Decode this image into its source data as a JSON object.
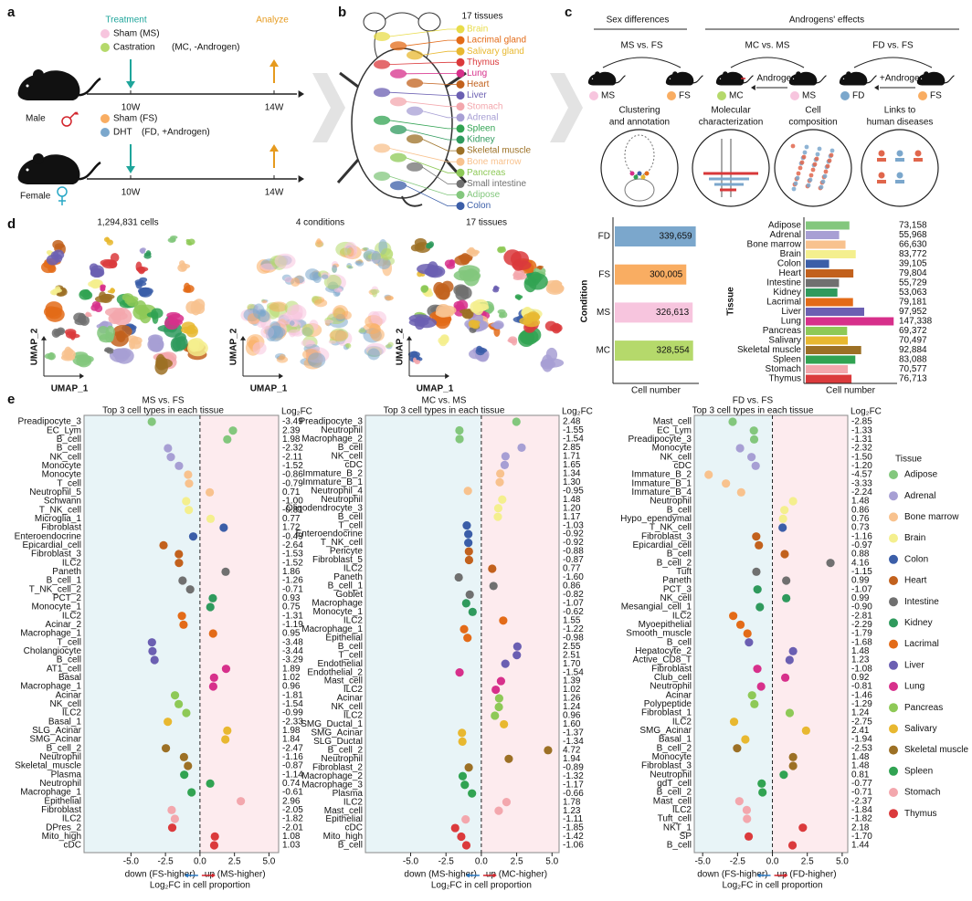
{
  "panel_labels": [
    "a",
    "b",
    "c",
    "d",
    "e"
  ],
  "panel_a": {
    "treatment": "Treatment",
    "analyze": "Analyze",
    "male": {
      "label": "Male",
      "groups": [
        {
          "name": "Sham (MS)",
          "color": "#f7c5de"
        },
        {
          "name": "Castration",
          "color": "#b5d96b"
        }
      ],
      "note": "(MC, -Androgen)",
      "times": [
        "10W",
        "14W"
      ]
    },
    "female": {
      "label": "Female",
      "groups": [
        {
          "name": "Sham (FS)",
          "color": "#f9ad62"
        },
        {
          "name": "DHT",
          "color": "#7ba7cc"
        }
      ],
      "note": "(FD, +Androgen)",
      "times": [
        "10W",
        "14W"
      ]
    }
  },
  "panel_b": {
    "title": "17 tissues",
    "tissues": [
      {
        "name": "Brain",
        "color": "#e8dc4a"
      },
      {
        "name": "Lacrimal gland",
        "color": "#e36b18"
      },
      {
        "name": "Salivary gland",
        "color": "#e8b830"
      },
      {
        "name": "Thymus",
        "color": "#db3a3c"
      },
      {
        "name": "Lung",
        "color": "#d7308b"
      },
      {
        "name": "Heart",
        "color": "#c2611d"
      },
      {
        "name": "Liver",
        "color": "#6b5fb2"
      },
      {
        "name": "Stomach",
        "color": "#f3a7ad"
      },
      {
        "name": "Adrenal",
        "color": "#a79fd4"
      },
      {
        "name": "Spleen",
        "color": "#31a352"
      },
      {
        "name": "Kidney",
        "color": "#2f9a5d"
      },
      {
        "name": "Skeletal muscle",
        "color": "#9c7025"
      },
      {
        "name": "Bone marrow",
        "color": "#f8c28e"
      },
      {
        "name": "Pancreas",
        "color": "#8ec957"
      },
      {
        "name": "Small intestine",
        "color": "#707070"
      },
      {
        "name": "Adipose",
        "color": "#83c77d"
      },
      {
        "name": "Colon",
        "color": "#3b5ea8"
      }
    ]
  },
  "panel_c": {
    "sex": "Sex differences",
    "androgen": "Androgens' effects",
    "comparisons": [
      {
        "title": "MS vs. FS",
        "left": {
          "name": "MS",
          "color": "#f7c5de"
        },
        "right": {
          "name": "FS",
          "color": "#f9ad62"
        }
      },
      {
        "title": "MC vs. MS",
        "left": {
          "name": "MC",
          "color": "#b5d96b"
        },
        "right": {
          "name": "MS",
          "color": "#f7c5de"
        },
        "arrow": "Androgen"
      },
      {
        "title": "FD vs. FS",
        "left": {
          "name": "FD",
          "color": "#7ba7cc"
        },
        "right": {
          "name": "FS",
          "color": "#f9ad62"
        },
        "arrow": "+Androgen"
      }
    ],
    "captions": [
      [
        "Clustering",
        "and annotation"
      ],
      [
        "Molecular",
        "characterization"
      ],
      [
        "Cell",
        "composition"
      ],
      [
        "Links to",
        "human diseases"
      ]
    ]
  },
  "umap": {
    "titles": [
      "1,294,831 cells",
      "4 conditions",
      "17 tissues"
    ],
    "x_label": "UMAP_1",
    "y_label": "UMAP_2"
  },
  "legend": {
    "title": "Tissue",
    "items": [
      {
        "name": "Adipose",
        "color": "#83c77d"
      },
      {
        "name": "Adrenal",
        "color": "#a79fd4"
      },
      {
        "name": "Bone marrow",
        "color": "#f8c28e"
      },
      {
        "name": "Brain",
        "color": "#f4ef8e"
      },
      {
        "name": "Colon",
        "color": "#3b5ea8"
      },
      {
        "name": "Heart",
        "color": "#c2611d"
      },
      {
        "name": "Intestine",
        "color": "#707070"
      },
      {
        "name": "Kidney",
        "color": "#2f9a5d"
      },
      {
        "name": "Lacrimal",
        "color": "#e36b18"
      },
      {
        "name": "Liver",
        "color": "#6b5fb2"
      },
      {
        "name": "Lung",
        "color": "#d7308b"
      },
      {
        "name": "Pancreas",
        "color": "#8ec957"
      },
      {
        "name": "Salivary",
        "color": "#e8b830"
      },
      {
        "name": "Skeletal muscle",
        "color": "#9c7025"
      },
      {
        "name": "Spleen",
        "color": "#31a352"
      },
      {
        "name": "Stomach",
        "color": "#f3a7ad"
      },
      {
        "name": "Thymus",
        "color": "#db3a3c"
      }
    ]
  },
  "chart_data": [
    {
      "type": "bar",
      "orientation": "horizontal",
      "ylabel": "Condition",
      "xlabel": "Cell number",
      "categories": [
        "FD",
        "FS",
        "MS",
        "MC"
      ],
      "values": [
        339659,
        300005,
        326613,
        328554
      ],
      "value_labels": [
        "339,659",
        "300,005",
        "326,613",
        "328,554"
      ],
      "colors": [
        "#7ba7cc",
        "#f9ad62",
        "#f7c5de",
        "#b5d96b"
      ],
      "xlim": [
        0,
        345000
      ]
    },
    {
      "type": "bar",
      "orientation": "horizontal",
      "ylabel": "Tissue",
      "xlabel": "Cell number",
      "categories": [
        "Adipose",
        "Adrenal",
        "Bone marrow",
        "Brain",
        "Colon",
        "Heart",
        "Intestine",
        "Kidney",
        "Lacrimal",
        "Liver",
        "Lung",
        "Pancreas",
        "Salivary",
        "Skeletal muscle",
        "Spleen",
        "Stomach",
        "Thymus"
      ],
      "values": [
        73158,
        55968,
        66630,
        83772,
        39105,
        79804,
        55729,
        53063,
        79181,
        97952,
        147338,
        69372,
        70497,
        92884,
        83088,
        70577,
        76713
      ],
      "value_labels": [
        "73,158",
        "55,968",
        "66,630",
        "83,772",
        "39,105",
        "79,804",
        "55,729",
        "53,063",
        "79,181",
        "97,952",
        "147,338",
        "69,372",
        "70,497",
        "92,884",
        "83,088",
        "70,577",
        "76,713"
      ],
      "colors": [
        "#83c77d",
        "#a79fd4",
        "#f8c28e",
        "#f4ef8e",
        "#3b5ea8",
        "#c2611d",
        "#707070",
        "#2f9a5d",
        "#e36b18",
        "#6b5fb2",
        "#d7308b",
        "#8ec957",
        "#e8b830",
        "#9c7025",
        "#31a352",
        "#f3a7ad",
        "#db3a3c"
      ],
      "xlim": [
        0,
        150000
      ]
    },
    {
      "type": "dot",
      "title": "MS vs. FS",
      "subtitle": "Top 3 cell types in each tissue",
      "fc_header": "Log₂FC",
      "down_label": "down (FS-higher)",
      "up_label": "up (MS-higher)",
      "xlabel": "Log₂FC in cell proportion",
      "xlim": [
        -8.4,
        5.7
      ],
      "xticks": [
        {
          "value": -5,
          "label": "-5.0"
        },
        {
          "value": -2.5,
          "label": "-2.5"
        },
        {
          "value": 0,
          "label": "0.0"
        },
        {
          "value": 2.5,
          "label": "2.5"
        },
        {
          "value": 5,
          "label": "5.0"
        }
      ],
      "categories": [
        "Preadipocyte_3",
        "EC_Lym",
        "B_cell",
        "B_cell",
        "NK_cell",
        "Monocyte",
        "Monocyte",
        "T_cell",
        "Neutrophil_5",
        "Schwann",
        "T_NK_cell",
        "Microglia_1",
        "Fibroblast",
        "Enteroendocrine",
        "Epicardial_cell",
        "Fibroblast_3",
        "ILC2",
        "Paneth",
        "B_cell_1",
        "T_NK_cell_2",
        "PCT_2",
        "Monocyte_1",
        "ILC2",
        "Acinar_2",
        "Macrophage_1",
        "T_cell",
        "Cholangiocyte",
        "B_cell",
        "AT1_cell",
        "Basal",
        "Macrophage_1",
        "Acinar",
        "NK_cell",
        "ILC2",
        "Basal_1",
        "SLG_Acinar",
        "SMG_Acinar",
        "B_cell_2",
        "Neutrophil",
        "Skeletal_muscle",
        "Plasma",
        "Neutrophil",
        "Macrophage_1",
        "Epithelial",
        "Fibroblast",
        "ILC2",
        "DPres_2",
        "Mito_high",
        "cDC"
      ],
      "values": [
        -3.49,
        2.39,
        1.98,
        -2.32,
        -2.11,
        -1.52,
        -0.86,
        -0.79,
        0.71,
        -1.0,
        -0.81,
        0.77,
        1.72,
        -0.49,
        -2.64,
        -1.53,
        -1.52,
        1.86,
        -1.26,
        -0.71,
        0.93,
        0.75,
        -1.31,
        -1.19,
        0.95,
        -3.48,
        -3.44,
        -3.29,
        1.89,
        1.02,
        0.96,
        -1.81,
        -1.54,
        -0.99,
        -2.33,
        1.98,
        1.84,
        -2.47,
        -1.16,
        -0.87,
        -1.14,
        0.74,
        -0.61,
        2.96,
        -2.05,
        -1.82,
        -2.01,
        1.08,
        1.03
      ],
      "value_labels": [
        "-3.49",
        "2.39",
        "1.98",
        "-2.32",
        "-2.11",
        "-1.52",
        "-0.86",
        "-0.79",
        "0.71",
        "-1.00",
        "-0.81",
        "0.77",
        "1.72",
        "-0.49",
        "-2.64",
        "-1.53",
        "-1.52",
        "1.86",
        "-1.26",
        "-0.71",
        "0.93",
        "0.75",
        "-1.31",
        "-1.19",
        "0.95",
        "-3.48",
        "-3.44",
        "-3.29",
        "1.89",
        "1.02",
        "0.96",
        "-1.81",
        "-1.54",
        "-0.99",
        "-2.33",
        "1.98",
        "1.84",
        "-2.47",
        "-1.16",
        "-0.87",
        "-1.14",
        "0.74",
        "-0.61",
        "2.96",
        "-2.05",
        "-1.82",
        "-2.01",
        "1.08",
        "1.03"
      ],
      "colors": [
        "#83c77d",
        "#83c77d",
        "#83c77d",
        "#a79fd4",
        "#a79fd4",
        "#a79fd4",
        "#f8c28e",
        "#f8c28e",
        "#f8c28e",
        "#f4ef8e",
        "#f4ef8e",
        "#f4ef8e",
        "#3b5ea8",
        "#3b5ea8",
        "#c2611d",
        "#c2611d",
        "#c2611d",
        "#707070",
        "#707070",
        "#707070",
        "#2f9a5d",
        "#2f9a5d",
        "#e36b18",
        "#e36b18",
        "#e36b18",
        "#6b5fb2",
        "#6b5fb2",
        "#6b5fb2",
        "#d7308b",
        "#d7308b",
        "#d7308b",
        "#8ec957",
        "#8ec957",
        "#8ec957",
        "#e8b830",
        "#e8b830",
        "#e8b830",
        "#9c7025",
        "#9c7025",
        "#9c7025",
        "#31a352",
        "#31a352",
        "#31a352",
        "#f3a7ad",
        "#f3a7ad",
        "#f3a7ad",
        "#db3a3c",
        "#db3a3c",
        "#db3a3c"
      ]
    },
    {
      "type": "dot",
      "title": "MC vs. MS",
      "subtitle": "Top 3 cell types in each tissue",
      "fc_header": "Log₂FC",
      "down_label": "down (MS-higher)",
      "up_label": "up (MC-higher)",
      "xlabel": "Log₂FC in cell proportion",
      "xlim": [
        -8.2,
        5.5
      ],
      "xticks": [
        {
          "value": -5,
          "label": "-5.0"
        },
        {
          "value": -2.5,
          "label": "-2.5"
        },
        {
          "value": 0,
          "label": "0.0"
        },
        {
          "value": 2.5,
          "label": "2.5"
        },
        {
          "value": 5,
          "label": "5.0"
        }
      ],
      "categories": [
        "Preadipocyte_3",
        "Neutrophil",
        "Macrophage_2",
        "B_cell",
        "NK_cell",
        "cDC",
        "Immature_B_2",
        "Immature_B_1",
        "Neutrophil_4",
        "Neutrophil",
        "Oligodendrocyte_3",
        "B_cell",
        "T_cell",
        "Enteroendocrine",
        "T_NK_cell",
        "Pericyte",
        "Fibroblast_5",
        "ILC2",
        "Paneth",
        "B_cell_1",
        "Goblet",
        "Macrophage",
        "Monocyte_1",
        "ILC2",
        "Macrophage_1",
        "Epithelial",
        "B_cell",
        "T_cell",
        "Endothelial",
        "Endothelial_2",
        "Mast_cell",
        "ILC2",
        "Acinar",
        "NK_cell",
        "ILC2",
        "SMG_Ductal_1",
        "SMG_Acinar",
        "SLG_Ductal",
        "B_cell_2",
        "Neutrophil",
        "Fibroblast_2",
        "Macrophage_2",
        "Macrophage_3",
        "Plasma",
        "ILC2",
        "Mast_cell",
        "Epithelial",
        "cDC",
        "Mito_high",
        "B_cell"
      ],
      "values": [
        2.48,
        -1.55,
        -1.54,
        2.85,
        1.71,
        1.65,
        1.34,
        1.3,
        -0.95,
        1.48,
        1.2,
        1.17,
        -1.03,
        -0.92,
        -0.92,
        -0.88,
        -0.87,
        0.77,
        -1.6,
        0.86,
        -0.82,
        -1.07,
        -0.62,
        1.55,
        -1.22,
        -0.98,
        2.55,
        2.51,
        1.7,
        -1.54,
        1.39,
        1.02,
        1.26,
        1.24,
        0.96,
        1.6,
        -1.37,
        -1.34,
        4.72,
        1.94,
        -0.89,
        -1.32,
        -1.17,
        -0.66,
        1.78,
        1.23,
        -1.11,
        -1.85,
        -1.42,
        -1.06
      ],
      "value_labels": [
        "2.48",
        "-1.55",
        "-1.54",
        "2.85",
        "1.71",
        "1.65",
        "1.34",
        "1.30",
        "-0.95",
        "1.48",
        "1.20",
        "1.17",
        "-1.03",
        "-0.92",
        "-0.92",
        "-0.88",
        "-0.87",
        "0.77",
        "-1.60",
        "0.86",
        "-0.82",
        "-1.07",
        "-0.62",
        "1.55",
        "-1.22",
        "-0.98",
        "2.55",
        "2.51",
        "1.70",
        "-1.54",
        "1.39",
        "1.02",
        "1.26",
        "1.24",
        "0.96",
        "1.60",
        "-1.37",
        "-1.34",
        "4.72",
        "1.94",
        "-0.89",
        "-1.32",
        "-1.17",
        "-0.66",
        "1.78",
        "1.23",
        "-1.11",
        "-1.85",
        "-1.42",
        "-1.06"
      ],
      "colors": [
        "#83c77d",
        "#83c77d",
        "#83c77d",
        "#a79fd4",
        "#a79fd4",
        "#a79fd4",
        "#f8c28e",
        "#f8c28e",
        "#f8c28e",
        "#f4ef8e",
        "#f4ef8e",
        "#f4ef8e",
        "#3b5ea8",
        "#3b5ea8",
        "#3b5ea8",
        "#c2611d",
        "#c2611d",
        "#c2611d",
        "#707070",
        "#707070",
        "#707070",
        "#2f9a5d",
        "#2f9a5d",
        "#e36b18",
        "#e36b18",
        "#e36b18",
        "#6b5fb2",
        "#6b5fb2",
        "#6b5fb2",
        "#d7308b",
        "#d7308b",
        "#d7308b",
        "#8ec957",
        "#8ec957",
        "#8ec957",
        "#e8b830",
        "#e8b830",
        "#e8b830",
        "#9c7025",
        "#9c7025",
        "#9c7025",
        "#31a352",
        "#31a352",
        "#31a352",
        "#f3a7ad",
        "#f3a7ad",
        "#f3a7ad",
        "#db3a3c",
        "#db3a3c",
        "#db3a3c"
      ]
    },
    {
      "type": "dot",
      "title": "FD vs. FS",
      "subtitle": "Top 3 cell types in each tissue",
      "fc_header": "Log₂FC",
      "down_label": "down (FS-higher)",
      "up_label": "up (FD-higher)",
      "xlabel": "Log₂FC in cell proportion",
      "xlim": [
        -5.6,
        5.4
      ],
      "xticks": [
        {
          "value": -5,
          "label": "-5.0"
        },
        {
          "value": -2.5,
          "label": "-2.5"
        },
        {
          "value": 0,
          "label": "0.0"
        },
        {
          "value": 2.5,
          "label": "2.5"
        },
        {
          "value": 5,
          "label": "5.0"
        }
      ],
      "categories": [
        "Mast_cell",
        "EC_Lym",
        "Preadipocyte_3",
        "Monocyte",
        "NK_cell",
        "cDC",
        "Immature_B_2",
        "Immature_B_1",
        "Immature_B_4",
        "Neutrophil",
        "B_cell",
        "Hypo_ependymal",
        "T_NK_cell",
        "Fibroblast_3",
        "Epicardial_cell",
        "B_cell",
        "B_cell_2",
        "Tuft",
        "Paneth",
        "PCT_3",
        "NK_cell",
        "Mesangial_cell_1",
        "ILC2",
        "Myoepithelial",
        "Smooth_muscle",
        "B_cell",
        "Hepatocyte_2",
        "Active_CD8_T",
        "Fibroblast",
        "Club_cell",
        "Neutrophil",
        "Acinar",
        "Polypeptide",
        "Fibroblast_1",
        "ILC2",
        "SMG_Acinar",
        "Basal_1",
        "B_cell_2",
        "Monocyte",
        "Fibroblast_3",
        "Neutrophil",
        "gdT_cell",
        "B_cell_2",
        "Mast_cell",
        "ILC2",
        "Tuft_cell",
        "NKT_1",
        "SP",
        "B_cell"
      ],
      "values": [
        -2.85,
        -1.33,
        -1.31,
        -2.32,
        -1.5,
        -1.2,
        -4.57,
        -3.33,
        -2.24,
        1.48,
        0.86,
        0.76,
        0.73,
        -1.16,
        -0.97,
        0.88,
        4.16,
        -1.15,
        0.99,
        -1.07,
        0.99,
        -0.9,
        -2.81,
        -2.29,
        -1.79,
        -1.68,
        1.48,
        1.23,
        -1.08,
        0.92,
        -0.81,
        -1.46,
        -1.29,
        1.24,
        -2.75,
        2.41,
        -1.94,
        -2.53,
        1.48,
        1.48,
        0.81,
        -0.77,
        -0.71,
        -2.37,
        -1.84,
        -1.82,
        2.18,
        -1.7,
        1.44
      ],
      "value_labels": [
        "-2.85",
        "-1.33",
        "-1.31",
        "-2.32",
        "-1.50",
        "-1.20",
        "-4.57",
        "-3.33",
        "-2.24",
        "1.48",
        "0.86",
        "0.76",
        "0.73",
        "-1.16",
        "-0.97",
        "0.88",
        "4.16",
        "-1.15",
        "0.99",
        "-1.07",
        "0.99",
        "-0.90",
        "-2.81",
        "-2.29",
        "-1.79",
        "-1.68",
        "1.48",
        "1.23",
        "-1.08",
        "0.92",
        "-0.81",
        "-1.46",
        "-1.29",
        "1.24",
        "-2.75",
        "2.41",
        "-1.94",
        "-2.53",
        "1.48",
        "1.48",
        "0.81",
        "-0.77",
        "-0.71",
        "-2.37",
        "-1.84",
        "-1.82",
        "2.18",
        "-1.70",
        "1.44"
      ],
      "colors": [
        "#83c77d",
        "#83c77d",
        "#83c77d",
        "#a79fd4",
        "#a79fd4",
        "#a79fd4",
        "#f8c28e",
        "#f8c28e",
        "#f8c28e",
        "#f4ef8e",
        "#f4ef8e",
        "#f4ef8e",
        "#3b5ea8",
        "#c2611d",
        "#c2611d",
        "#c2611d",
        "#707070",
        "#707070",
        "#707070",
        "#2f9a5d",
        "#2f9a5d",
        "#2f9a5d",
        "#e36b18",
        "#e36b18",
        "#e36b18",
        "#6b5fb2",
        "#6b5fb2",
        "#6b5fb2",
        "#d7308b",
        "#d7308b",
        "#d7308b",
        "#8ec957",
        "#8ec957",
        "#8ec957",
        "#e8b830",
        "#e8b830",
        "#e8b830",
        "#9c7025",
        "#9c7025",
        "#9c7025",
        "#31a352",
        "#31a352",
        "#31a352",
        "#f3a7ad",
        "#f3a7ad",
        "#f3a7ad",
        "#db3a3c",
        "#db3a3c",
        "#db3a3c"
      ]
    }
  ]
}
